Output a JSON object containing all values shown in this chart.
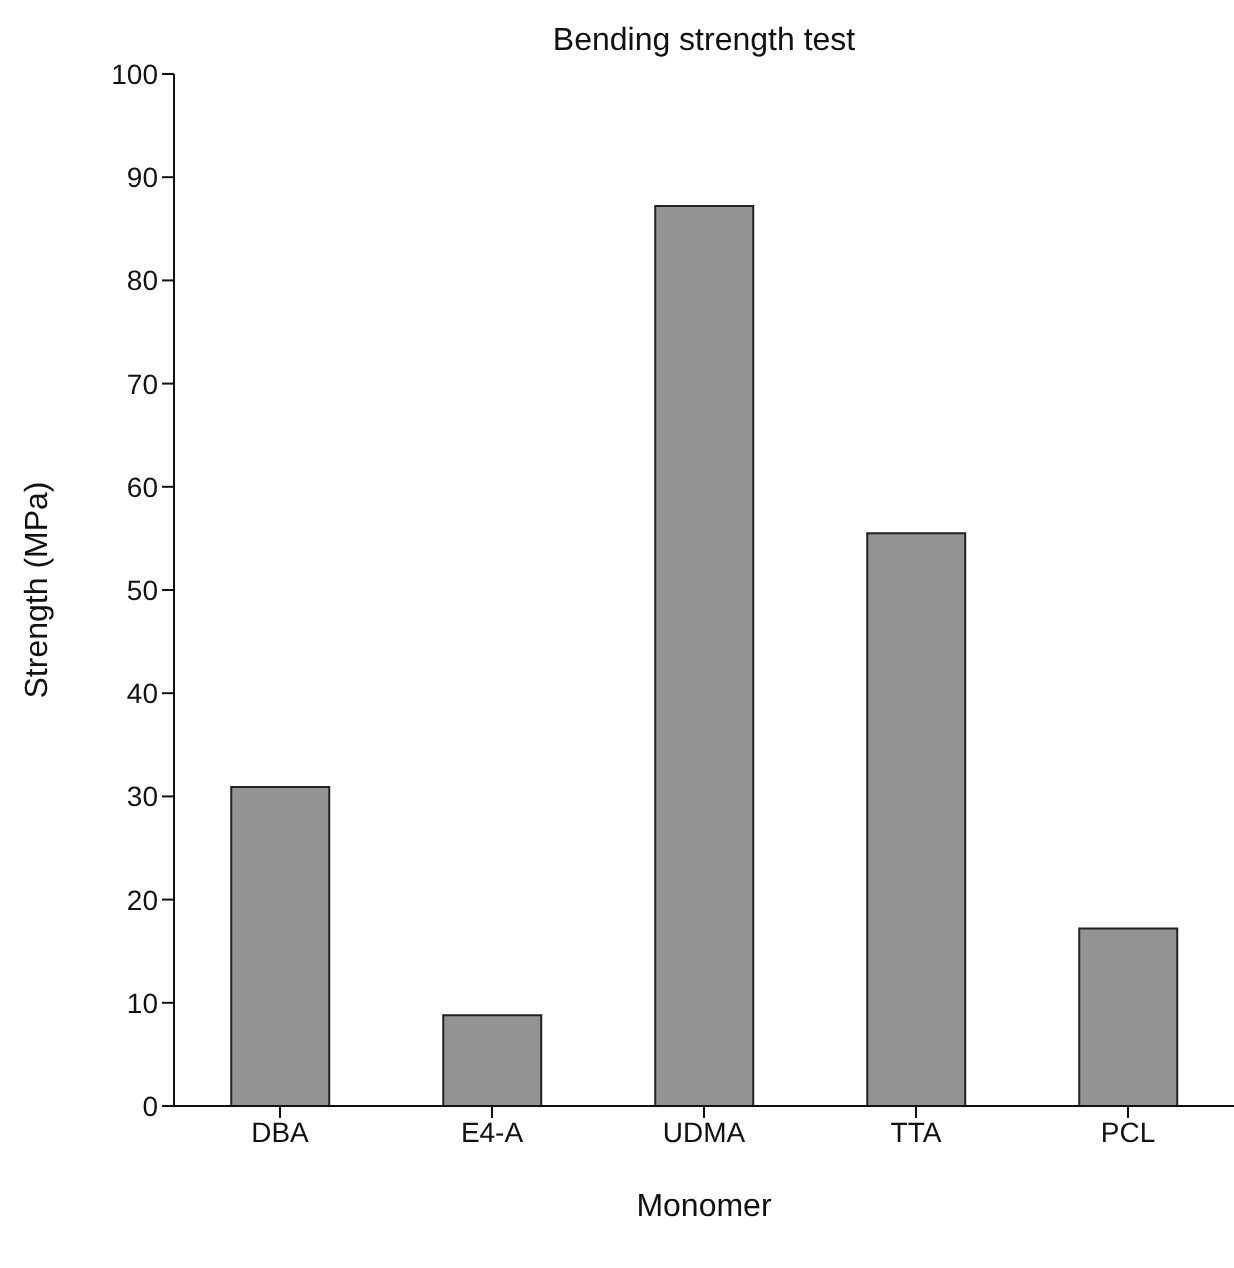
{
  "chart_data": {
    "type": "bar",
    "title": "Bending strength test",
    "xlabel": "Monomer",
    "ylabel": "Strength (MPa)",
    "categories": [
      "DBA",
      "E4-A",
      "UDMA",
      "TTA",
      "PCL"
    ],
    "values": [
      30.9,
      8.8,
      87.2,
      55.5,
      17.2
    ],
    "color": "#939393",
    "ylim": [
      0,
      100
    ],
    "yticks": [
      0,
      10,
      20,
      30,
      40,
      50,
      60,
      70,
      80,
      90,
      100
    ],
    "grid": false,
    "legend": false
  }
}
